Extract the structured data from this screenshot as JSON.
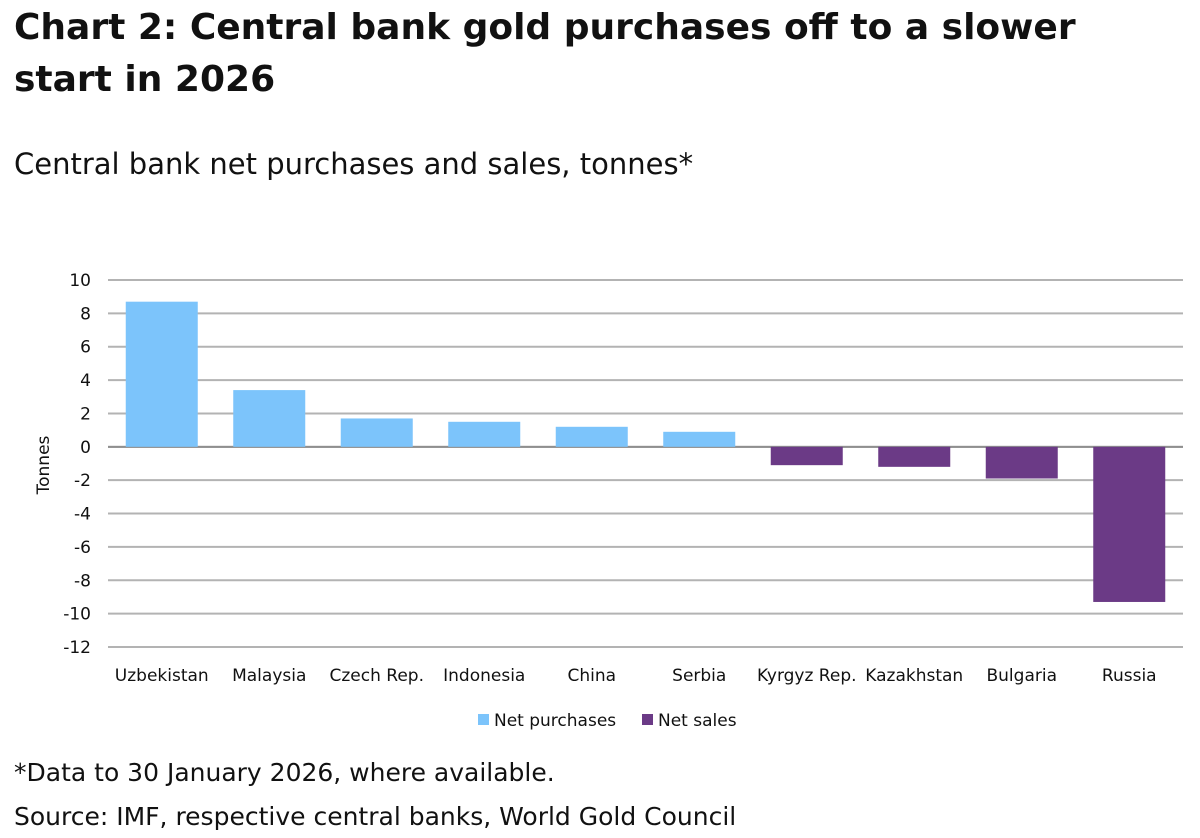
{
  "title": "Chart 2: Central bank gold purchases off to a slower start in 2026",
  "subtitle": "Central bank net purchases and sales, tonnes*",
  "footnote": "*Data to 30 January 2026, where available.",
  "source": "Source: IMF, respective central banks, World Gold Council",
  "chart_data": {
    "type": "bar",
    "categories": [
      "Uzbekistan",
      "Malaysia",
      "Czech Rep.",
      "Indonesia",
      "China",
      "Serbia",
      "Kyrgyz Rep.",
      "Kazakhstan",
      "Bulgaria",
      "Russia"
    ],
    "values": [
      8.7,
      3.4,
      1.7,
      1.5,
      1.2,
      0.9,
      -1.1,
      -1.2,
      -1.9,
      -9.3
    ],
    "ylabel": "Tonnes",
    "xlabel": "",
    "ylim": [
      -12,
      10
    ],
    "yticks": [
      10,
      8,
      6,
      4,
      2,
      0,
      -2,
      -4,
      -6,
      -8,
      -10,
      -12
    ],
    "grid": true,
    "legend_position": "bottom",
    "series": [
      {
        "name": "Net purchases",
        "color": "#7cc4fb"
      },
      {
        "name": "Net sales",
        "color": "#6b3a86"
      }
    ]
  }
}
